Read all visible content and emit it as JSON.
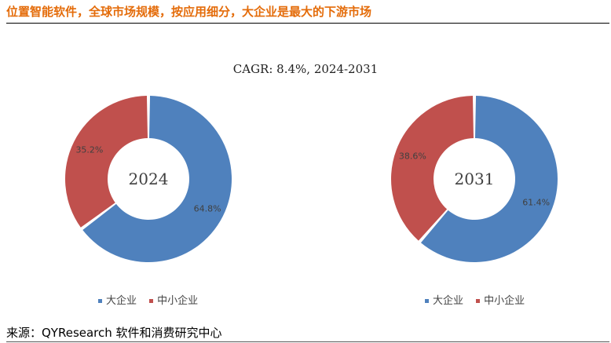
{
  "header": {
    "title": "位置智能软件，全球市场规模，按应用细分，大企业是最大的下游市场"
  },
  "subtitle": "CAGR:   8.4%, 2024-2031",
  "colors": {
    "large": "#4F81BD",
    "sme": "#C0504D",
    "title": "#E46C0A"
  },
  "chart_data": [
    {
      "type": "pie",
      "center_label": "2024",
      "labels": [
        "大企业",
        "中小企业"
      ],
      "values": [
        64.8,
        35.2
      ],
      "value_labels": [
        "64.8%",
        "35.2%"
      ],
      "legend": [
        "大企业",
        "中小企业"
      ]
    },
    {
      "type": "pie",
      "center_label": "2031",
      "labels": [
        "大企业",
        "中小企业"
      ],
      "values": [
        61.4,
        38.6
      ],
      "value_labels": [
        "61.4%",
        "38.6%"
      ],
      "legend": [
        "大企业",
        "中小企业"
      ]
    }
  ],
  "footer": {
    "source": "来源：QYResearch 软件和消费研究中心"
  }
}
